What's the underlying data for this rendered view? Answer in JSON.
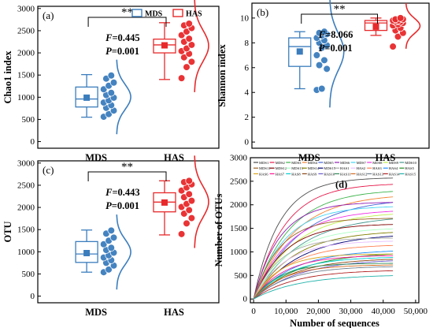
{
  "chart_data": [
    {
      "type": "box",
      "panel_label": "(a)",
      "ylabel": "Chao1 index",
      "categories": [
        "MDS",
        "HAS"
      ],
      "yticks": [
        0,
        500,
        1000,
        1500,
        2000,
        2500,
        3000
      ],
      "ylim": [
        -150,
        3050
      ],
      "legend": [
        {
          "name": "MDS",
          "color": "#3b7dbd"
        },
        {
          "name": "HAS",
          "color": "#e8292b"
        }
      ],
      "significance": "**",
      "stat_f_label": "F",
      "stat_f_value": "=0.445",
      "stat_p_label": "P",
      "stat_p_value": "=0.001",
      "groups": [
        {
          "name": "MDS",
          "color": "#3b7dbd",
          "whisker_low": 550,
          "q1": 780,
          "median": 960,
          "q3": 1230,
          "whisker_high": 1510,
          "mean": 990,
          "points": [
            560,
            620,
            700,
            760,
            820,
            880,
            930,
            990,
            1050,
            1100,
            1180,
            1260,
            1330,
            1420,
            1490
          ]
        },
        {
          "name": "HAS",
          "color": "#e8292b",
          "whisker_low": 1400,
          "q1": 2000,
          "median": 2180,
          "q3": 2310,
          "whisker_high": 2680,
          "mean": 2170,
          "points": [
            1430,
            1680,
            1800,
            1900,
            1980,
            2040,
            2100,
            2180,
            2250,
            2320,
            2400,
            2480,
            2560,
            2620,
            2660
          ]
        }
      ]
    },
    {
      "type": "box",
      "panel_label": "(b)",
      "ylabel": "Shannon index",
      "categories": [
        "MDS",
        "HAS"
      ],
      "yticks": [
        0,
        2,
        4,
        6,
        8,
        10
      ],
      "ylim": [
        -0.5,
        11.2
      ],
      "significance": "**",
      "stat_f_label": "F",
      "stat_f_value": "=8.066",
      "stat_p_label": "P",
      "stat_p_value": "=0.001",
      "groups": [
        {
          "name": "MDS",
          "color": "#3b7dbd",
          "whisker_low": 4.3,
          "q1": 6.1,
          "median": 7.7,
          "q3": 8.4,
          "whisker_high": 8.9,
          "mean": 7.3,
          "points": [
            4.2,
            4.3,
            5.9,
            6.2,
            6.6,
            7.0,
            7.6,
            7.8,
            8.0,
            8.2,
            8.4,
            8.6,
            8.7,
            8.8,
            8.9
          ]
        },
        {
          "name": "HAS",
          "color": "#e8292b",
          "whisker_low": 8.6,
          "q1": 9.0,
          "median": 9.6,
          "q3": 9.8,
          "whisker_high": 10.0,
          "mean": 9.3,
          "points": [
            7.7,
            8.5,
            8.8,
            9.0,
            9.2,
            9.4,
            9.5,
            9.6,
            9.7,
            9.7,
            9.8,
            9.8,
            9.9,
            9.9,
            10.0
          ]
        }
      ]
    },
    {
      "type": "box",
      "panel_label": "(c)",
      "ylabel": "OTU",
      "categories": [
        "MDS",
        "HAS"
      ],
      "yticks": [
        0,
        500,
        1000,
        1500,
        2000,
        2500,
        3000
      ],
      "ylim": [
        -150,
        3050
      ],
      "significance": "**",
      "stat_f_label": "F",
      "stat_f_value": "=0.443",
      "stat_p_label": "P",
      "stat_p_value": "=0.001",
      "groups": [
        {
          "name": "MDS",
          "color": "#3b7dbd",
          "whisker_low": 540,
          "q1": 760,
          "median": 950,
          "q3": 1230,
          "whisker_high": 1490,
          "mean": 970,
          "points": [
            540,
            600,
            690,
            750,
            810,
            870,
            920,
            980,
            1040,
            1090,
            1170,
            1250,
            1320,
            1410,
            1480
          ]
        },
        {
          "name": "HAS",
          "color": "#e8292b",
          "whisker_low": 1380,
          "q1": 1900,
          "median": 2120,
          "q3": 2330,
          "whisker_high": 2600,
          "mean": 2110,
          "points": [
            1400,
            1640,
            1760,
            1860,
            1940,
            2010,
            2080,
            2150,
            2230,
            2300,
            2380,
            2450,
            2520,
            2570,
            2600
          ]
        }
      ]
    },
    {
      "type": "line",
      "panel_label": "(d)",
      "xlabel": "Number of sequences",
      "ylabel": "Number of OTUs",
      "xticks": [
        0,
        10000,
        20000,
        30000,
        40000,
        50000
      ],
      "xtick_labels": [
        "0",
        "10,000",
        "20,000",
        "30,000",
        "40,000",
        "50,000"
      ],
      "yticks": [
        0,
        500,
        1000,
        1500,
        2000,
        2500,
        3000
      ],
      "xlim": [
        -1000,
        51000
      ],
      "ylim": [
        -80,
        3000
      ],
      "legend": [
        "MDS1",
        "MDS2",
        "MDS3",
        "MDS4",
        "MDS5",
        "MDS6",
        "MDS7",
        "MDS8",
        "MDS9",
        "MDS10",
        "MDS11",
        "MDS12",
        "MDS13",
        "MDS14",
        "MDS15",
        "HAS1",
        "HAS2",
        "HAS3",
        "HAS4",
        "HAS5",
        "HAS6",
        "HAS7",
        "HAS8",
        "HAS9",
        "HAS10",
        "HAS11",
        "HAS12",
        "HAS13",
        "HAS14",
        "HAS15"
      ],
      "series_end_x": 43000,
      "series_asymptotes": [
        2580,
        2460,
        2330,
        2240,
        2150,
        2060,
        1980,
        1900,
        1860,
        1780,
        1720,
        1600,
        1520,
        1460,
        1400,
        1300,
        1240,
        1160,
        1050,
        1000,
        960,
        930,
        900,
        870,
        850,
        760,
        730,
        700,
        620,
        520
      ],
      "series_colors": [
        "#4e4e4e",
        "#e6194b",
        "#3cb44b",
        "#f58231",
        "#4363d8",
        "#911eb4",
        "#42d4f4",
        "#f032e6",
        "#bfef45",
        "#469990",
        "#9a6324",
        "#800000",
        "#aaffc3",
        "#808000",
        "#000075",
        "#a9a9a9",
        "#e6beff",
        "#ff7f50",
        "#1e90ff",
        "#228b22",
        "#daa520",
        "#ff1493",
        "#00ced1",
        "#8b4513",
        "#6a5acd",
        "#2e8b57",
        "#d2691e",
        "#708090",
        "#b22222",
        "#20b2aa"
      ]
    }
  ]
}
